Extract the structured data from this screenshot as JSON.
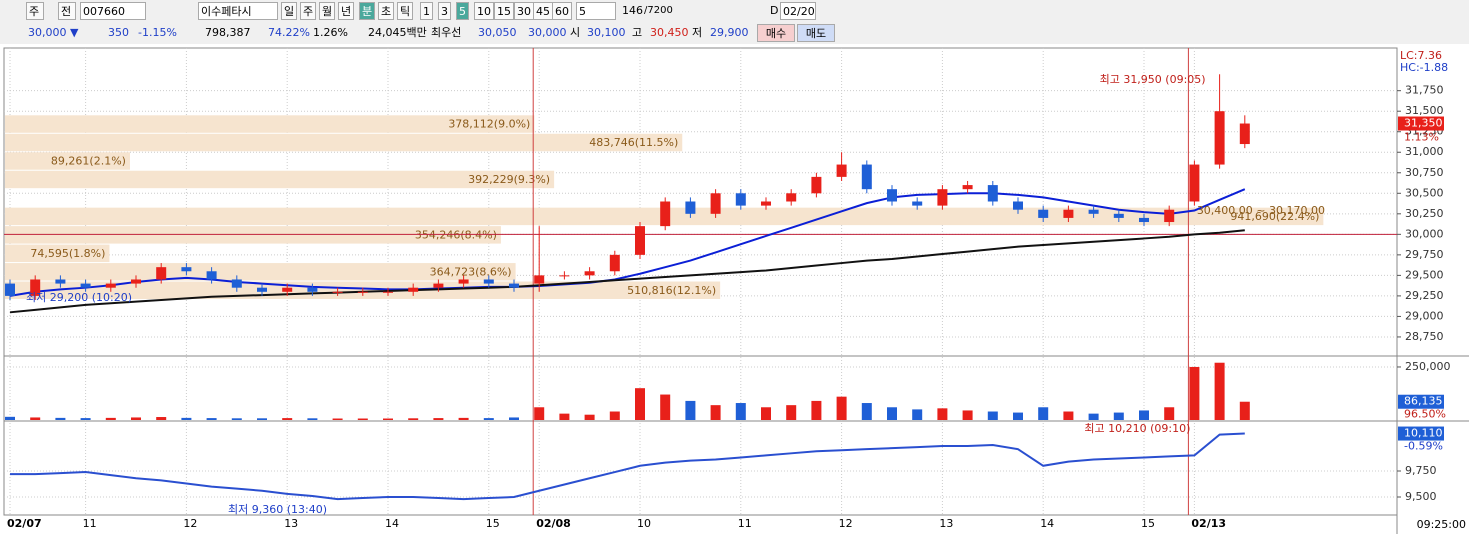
{
  "toolbar": {
    "market": "주",
    "type": "전",
    "code": "007660",
    "name": "이수페타시",
    "periods": [
      "일",
      "주",
      "월",
      "년",
      "분",
      "초",
      "틱"
    ],
    "intervals": [
      "1",
      "3",
      "5",
      "10",
      "15",
      "30",
      "45",
      "60"
    ],
    "count_select": "5",
    "count": "146",
    "max_count": "/7200",
    "d_label": "D",
    "date": "02/20"
  },
  "quote_bar": {
    "price": "30,000 ▼",
    "change": "350",
    "change_rate": "-1.15%",
    "volume": "798,387",
    "volume_rate": "74.22%",
    "turnover": "1.26%",
    "amount": "24,045백만",
    "best_label": "최우선",
    "ask": "30,050",
    "bid": "30,000",
    "open_label": "시",
    "open": "30,100",
    "high_label": "고",
    "high": "30,450",
    "low_label": "저",
    "low": "29,900",
    "buy": "매수",
    "sell": "매도"
  },
  "time_label": "09:25:00",
  "chart_data": [
    {
      "type": "candlestick",
      "up_color": "#e8201a",
      "down_color": "#1f5fd6",
      "open": [
        29400,
        29250,
        29450,
        29400,
        29350,
        29400,
        29450,
        29600,
        29550,
        29450,
        29350,
        29300,
        29350,
        29300,
        29300,
        29300,
        29300,
        29350,
        29400,
        29450,
        29400,
        29400,
        29500,
        29500,
        29550,
        29750,
        30100,
        30400,
        30250,
        30500,
        30350,
        30400,
        30500,
        30700,
        30850,
        30550,
        30400,
        30350,
        30550,
        30600,
        30400,
        30300,
        30200,
        30300,
        30250,
        30200,
        30150,
        30400,
        30850,
        31100
      ],
      "high": [
        29450,
        29500,
        29500,
        29450,
        29450,
        29500,
        29650,
        29650,
        29600,
        29500,
        29400,
        29400,
        29400,
        29350,
        29350,
        29350,
        29400,
        29450,
        29500,
        29500,
        29450,
        30100,
        29550,
        29600,
        29800,
        30150,
        30450,
        30450,
        30550,
        30550,
        30450,
        30550,
        30750,
        31000,
        30900,
        30600,
        30450,
        30600,
        30650,
        30650,
        30450,
        30350,
        30350,
        30350,
        30300,
        30250,
        30350,
        30900,
        31950,
        31450
      ],
      "low": [
        29200,
        29200,
        29350,
        29300,
        29300,
        29350,
        29400,
        29500,
        29400,
        29300,
        29250,
        29250,
        29250,
        29250,
        29250,
        29250,
        29250,
        29300,
        29350,
        29350,
        29300,
        29300,
        29450,
        29450,
        29500,
        29700,
        30050,
        30200,
        30200,
        30300,
        30300,
        30350,
        30450,
        30650,
        30500,
        30350,
        30300,
        30300,
        30500,
        30350,
        30250,
        30150,
        30150,
        30200,
        30150,
        30100,
        30100,
        30350,
        30800,
        31050
      ],
      "close": [
        29250,
        29450,
        29400,
        29350,
        29400,
        29450,
        29600,
        29550,
        29450,
        29350,
        29300,
        29350,
        29300,
        29300,
        29300,
        29300,
        29350,
        29400,
        29450,
        29400,
        29350,
        29500,
        29500,
        29550,
        29750,
        30100,
        30400,
        30250,
        30500,
        30350,
        30400,
        30500,
        30700,
        30850,
        30550,
        30400,
        30350,
        30550,
        30600,
        30400,
        30300,
        30200,
        30300,
        30250,
        30200,
        30150,
        30300,
        30850,
        31500,
        31350
      ],
      "moving_averages": [
        {
          "color": "#0b1fd6",
          "values": [
            29250,
            29300,
            29330,
            29350,
            29380,
            29420,
            29450,
            29470,
            29450,
            29420,
            29400,
            29380,
            29360,
            29350,
            29340,
            29330,
            29330,
            29340,
            29350,
            29360,
            29360,
            29370,
            29390,
            29410,
            29450,
            29520,
            29600,
            29680,
            29780,
            29880,
            29980,
            30080,
            30180,
            30280,
            30380,
            30450,
            30480,
            30490,
            30500,
            30500,
            30480,
            30450,
            30400,
            30350,
            30300,
            30270,
            30250,
            30290,
            30420,
            30550
          ]
        },
        {
          "color": "#111111",
          "values": [
            29050,
            29080,
            29110,
            29140,
            29160,
            29180,
            29200,
            29220,
            29240,
            29250,
            29260,
            29270,
            29280,
            29290,
            29300,
            29310,
            29320,
            29330,
            29340,
            29350,
            29360,
            29380,
            29400,
            29420,
            29440,
            29460,
            29480,
            29500,
            29520,
            29540,
            29560,
            29590,
            29620,
            29650,
            29680,
            29700,
            29730,
            29760,
            29790,
            29820,
            29850,
            29870,
            29890,
            29910,
            29930,
            29950,
            29970,
            30000,
            30020,
            30050
          ]
        }
      ],
      "ref_line": 30000,
      "ylim": [
        28530,
        32270
      ],
      "yticks": [
        {
          "value": 28750,
          "label": "28,750"
        },
        {
          "value": 29000,
          "label": "29,000"
        },
        {
          "value": 29250,
          "label": "29,250"
        },
        {
          "value": 29500,
          "label": "29,500"
        },
        {
          "value": 29750,
          "label": "29,750"
        },
        {
          "value": 30000,
          "label": "30,000"
        },
        {
          "value": 30250,
          "label": "30,250"
        },
        {
          "value": 30500,
          "label": "30,500"
        },
        {
          "value": 30750,
          "label": "30,750"
        },
        {
          "value": 31000,
          "label": "31,000"
        },
        {
          "value": 31250,
          "label": "31,250"
        },
        {
          "value": 31500,
          "label": "31,500"
        },
        {
          "value": 31750,
          "label": "31,750"
        }
      ],
      "volume_profile": {
        "bins": [
          29200,
          29425,
          29650,
          29875,
          30100,
          30325,
          30550,
          30775,
          31000,
          31225,
          31450
        ],
        "values": [
          510816,
          364723,
          74595,
          354246,
          941690,
          null,
          392229,
          89261,
          483746,
          378112
        ],
        "value_labels": [
          "510,816(12.1%)",
          "364,723(8.6%)",
          "74,595(1.8%)",
          "354,246(8.4%)",
          "941,690(22.4%)",
          null,
          "392,229(9.3%)",
          "89,261(2.1%)",
          "483,746(11.5%)",
          "378,112(9.0%)"
        ],
        "color": "#f6e4cf"
      },
      "high_label": "최고 31,950 (09:05)",
      "low_label": "최저 29,200 (10:20)",
      "range_label": "30,400.00 ~ 30,170.00",
      "lc_label": "LC:7.36",
      "hc_label": "HC:-1.88",
      "last_label": "31,350",
      "change_label": "1.13%"
    },
    {
      "type": "bar",
      "values": [
        15000,
        12000,
        10000,
        9000,
        10000,
        12000,
        14000,
        10000,
        9000,
        8000,
        8000,
        9000,
        8000,
        7000,
        7000,
        7000,
        8000,
        9000,
        10000,
        9000,
        12000,
        60000,
        30000,
        25000,
        40000,
        150000,
        120000,
        90000,
        70000,
        80000,
        60000,
        70000,
        90000,
        110000,
        80000,
        60000,
        50000,
        55000,
        45000,
        40000,
        35000,
        60000,
        40000,
        30000,
        35000,
        45000,
        60000,
        250000,
        270000,
        86135
      ],
      "ylim": [
        0,
        297000
      ],
      "yticks": [
        {
          "value": 250000,
          "label": "250,000"
        }
      ],
      "last_label": "86,135",
      "rate_label": "96.50%"
    },
    {
      "type": "line",
      "color": "#2a4fd0",
      "categories": [
        "02/07",
        null,
        null,
        "11",
        null,
        null,
        null,
        "12",
        null,
        null,
        null,
        "13",
        null,
        null,
        null,
        "14",
        null,
        null,
        null,
        "15",
        null,
        "02/08",
        null,
        null,
        null,
        "10",
        null,
        null,
        null,
        "11",
        null,
        null,
        null,
        "12",
        null,
        null,
        null,
        "13",
        null,
        null,
        null,
        "14",
        null,
        null,
        null,
        "15",
        null,
        "02/13",
        null,
        null
      ],
      "values": [
        9720,
        9720,
        9730,
        9740,
        9710,
        9680,
        9660,
        9630,
        9600,
        9580,
        9560,
        9530,
        9510,
        9480,
        9490,
        9500,
        9500,
        9490,
        9480,
        9490,
        9500,
        9560,
        9620,
        9680,
        9740,
        9800,
        9830,
        9850,
        9860,
        9880,
        9900,
        9920,
        9940,
        9950,
        9960,
        9970,
        9980,
        9990,
        9990,
        10000,
        9960,
        9800,
        9840,
        9860,
        9870,
        9880,
        9890,
        9900,
        10100,
        10110
      ],
      "ylim": [
        9327,
        10221
      ],
      "yticks": [
        {
          "value": 9500,
          "label": "9,500"
        },
        {
          "value": 9750,
          "label": "9,750"
        }
      ],
      "high_label": "최고 10,210 (09:10)",
      "low_label": "최저 9,360 (13:40)",
      "last_label": "10,110",
      "change_label": "-0.59%"
    }
  ]
}
